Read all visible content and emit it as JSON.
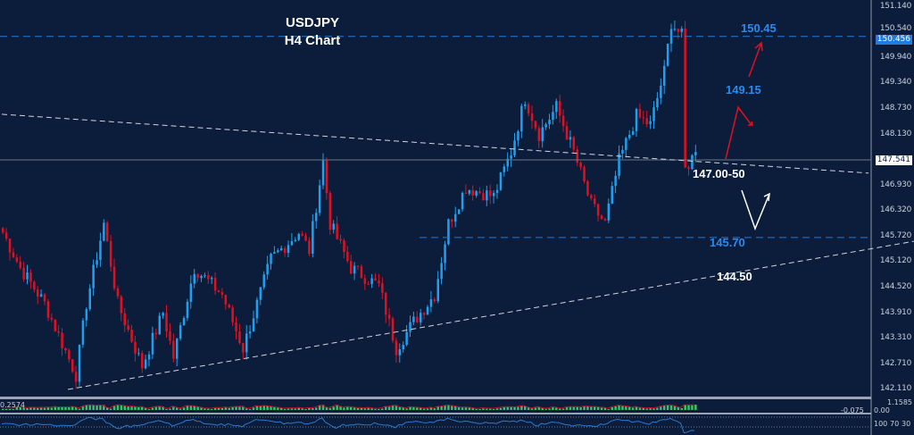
{
  "header": {
    "symbol": "USDJPY",
    "timeframe": "H4 Chart"
  },
  "chart_data": {
    "type": "candlestick",
    "symbol": "USDJPY",
    "ylim": [
      141.95,
      151.3
    ],
    "y_ticks": [
      "151.140",
      "150.540",
      "149.940",
      "149.340",
      "148.730",
      "148.130",
      "146.930",
      "146.320",
      "145.720",
      "145.120",
      "144.520",
      "143.910",
      "143.310",
      "142.710",
      "142.110"
    ],
    "current_price": "147.541",
    "high_marker": "150.456",
    "colors": {
      "up": "#1ea0f0",
      "down": "#e01020",
      "background": "#0b1d3a",
      "level": "#1e7ee0"
    },
    "close_path": [
      [
        0,
        145.82
      ],
      [
        5,
        144.98
      ],
      [
        12,
        144.14
      ],
      [
        21,
        142.45
      ],
      [
        24,
        144.14
      ],
      [
        29,
        146.03
      ],
      [
        33,
        144.14
      ],
      [
        40,
        142.66
      ],
      [
        46,
        143.93
      ],
      [
        49,
        142.87
      ],
      [
        55,
        144.98
      ],
      [
        63,
        144.35
      ],
      [
        69,
        143.08
      ],
      [
        77,
        145.19
      ],
      [
        85,
        145.82
      ],
      [
        88,
        145.4
      ],
      [
        92,
        147.51
      ],
      [
        94,
        146.03
      ],
      [
        100,
        144.98
      ],
      [
        108,
        144.56
      ],
      [
        113,
        143.08
      ],
      [
        118,
        143.71
      ],
      [
        124,
        144.35
      ],
      [
        128,
        146.03
      ],
      [
        133,
        146.88
      ],
      [
        141,
        146.67
      ],
      [
        146,
        147.72
      ],
      [
        150,
        148.99
      ],
      [
        154,
        148.14
      ],
      [
        159,
        148.78
      ],
      [
        164,
        147.72
      ],
      [
        169,
        146.46
      ],
      [
        173,
        146.03
      ],
      [
        177,
        147.51
      ],
      [
        182,
        148.57
      ],
      [
        186,
        148.36
      ],
      [
        190,
        149.62
      ],
      [
        192,
        150.78
      ],
      [
        195,
        150.46
      ],
      [
        196,
        147.3
      ],
      [
        199,
        147.72
      ]
    ],
    "levels": [
      {
        "label": "150.45",
        "price": 150.45,
        "style": "dashed-blue"
      },
      {
        "label": "145.70",
        "price": 145.7,
        "style": "dashed-blue"
      }
    ],
    "annotations": {
      "r1": "149.15",
      "pivot": "147.00-50",
      "s1": "144.50"
    },
    "trendlines": [
      {
        "from": [
          0,
          148.61
        ],
        "to": [
          249,
          147.22
        ],
        "style": "dashed-white"
      },
      {
        "from": [
          19,
          142.11
        ],
        "to": [
          262,
          145.61
        ],
        "style": "dashed-white"
      }
    ]
  },
  "indicators": {
    "macd": {
      "label": "0.2574",
      "axis": [
        "1.1585",
        "0.00",
        "-0.075"
      ]
    },
    "rsi": {
      "axis": [
        "100",
        "70",
        "30"
      ]
    }
  }
}
